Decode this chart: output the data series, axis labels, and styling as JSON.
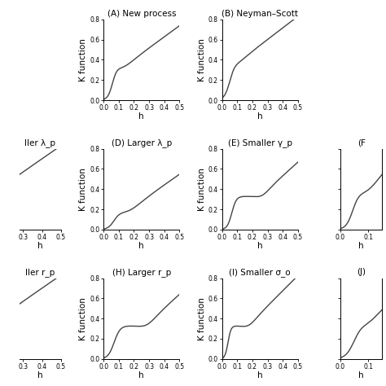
{
  "panel_A_title": "(A) New process",
  "panel_B_title": "(B) Neyman–Scott",
  "panel_C_title": "ller λ_p",
  "panel_D_title": "(D) Larger λ_p",
  "panel_E_title": "(E) Smaller γ_p",
  "panel_F_title": "(F",
  "panel_G_title": "ller r_p",
  "panel_H_title": "(H) Larger r_p",
  "panel_I_title": "(I) Smaller σ_o",
  "panel_J_title": "(J)",
  "xlim_full": [
    0.0,
    0.5
  ],
  "ylim": [
    0.0,
    0.8
  ],
  "xlabel": "h",
  "ylabel": "K function",
  "line_color": "#444444",
  "line_width": 1.0,
  "bg_color": "#ffffff",
  "tick_fontsize": 5.5,
  "label_fontsize": 7.5,
  "title_fontsize": 7.5,
  "fig_width": 4.74,
  "fig_height": 4.74,
  "dpi": 100
}
